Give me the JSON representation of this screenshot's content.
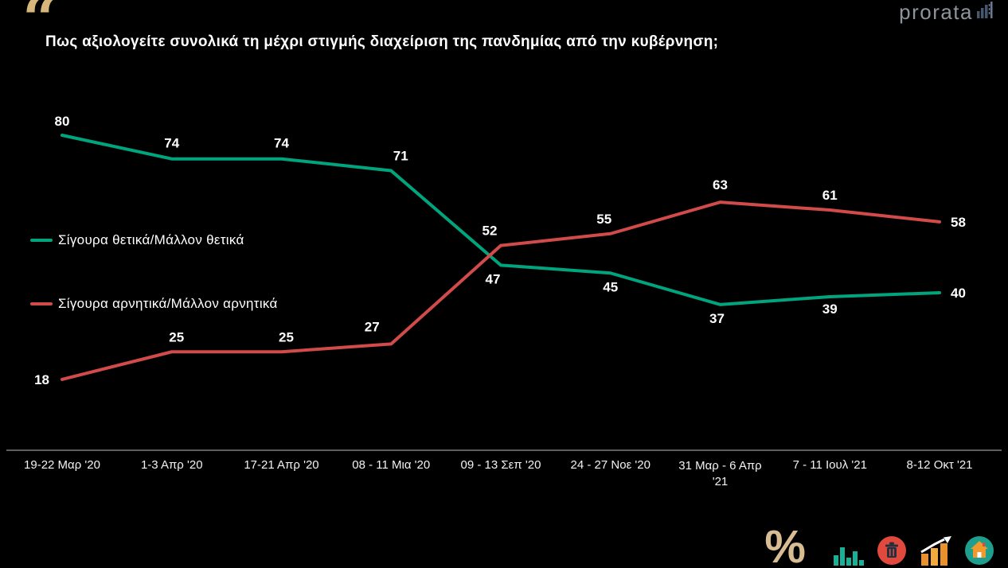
{
  "header": {
    "quote_glyph": "“",
    "title": "Πως αξιολογείτε συνολικά τη μέχρι στιγμής διαχείριση της πανδημίας από την κυβέρνηση;",
    "logo": {
      "text": "prorata"
    }
  },
  "chart_data": {
    "type": "line",
    "title": "Πως αξιολογείτε συνολικά τη μέχρι στιγμής διαχείριση της πανδημίας από την κυβέρνηση;",
    "categories": [
      "19-22 Μαρ '20",
      "1-3 Απρ '20",
      "17-21 Απρ '20",
      "08 - 11 Μια '20",
      "09 - 13 Σεπ '20",
      "24 - 27 Νοε '20",
      "31 Μαρ - 6 Απρ '21",
      "7 - 11 Ιουλ '21",
      "8-12 Οκτ '21"
    ],
    "series": [
      {
        "name": "Σίγουρα θετικά/Μάλλον θετικά",
        "color": "#00a57e",
        "values": [
          80,
          74,
          74,
          71,
          47,
          45,
          37,
          39,
          40
        ]
      },
      {
        "name": "Σίγουρα αρνητικά/Μάλλον αρνητικά",
        "color": "#d24b4b",
        "values": [
          18,
          25,
          25,
          27,
          52,
          55,
          63,
          61,
          58
        ]
      }
    ],
    "ylim": [
      0,
      100
    ],
    "grid": false,
    "legend_position": "left-middle",
    "axis_color": "#7d7d7d",
    "label_color": "#ffffff",
    "background": "#000000"
  },
  "footer": {
    "icons": [
      {
        "name": "percent-icon",
        "glyph": "%",
        "color": "#d9bd92"
      },
      {
        "name": "bar-chart-icon",
        "color": "#17b198"
      },
      {
        "name": "trash-icon",
        "color": "#e2493d"
      },
      {
        "name": "growth-chart-icon",
        "color": "#f0a12e"
      },
      {
        "name": "home-icon",
        "color": "#1e9e8c"
      }
    ]
  }
}
